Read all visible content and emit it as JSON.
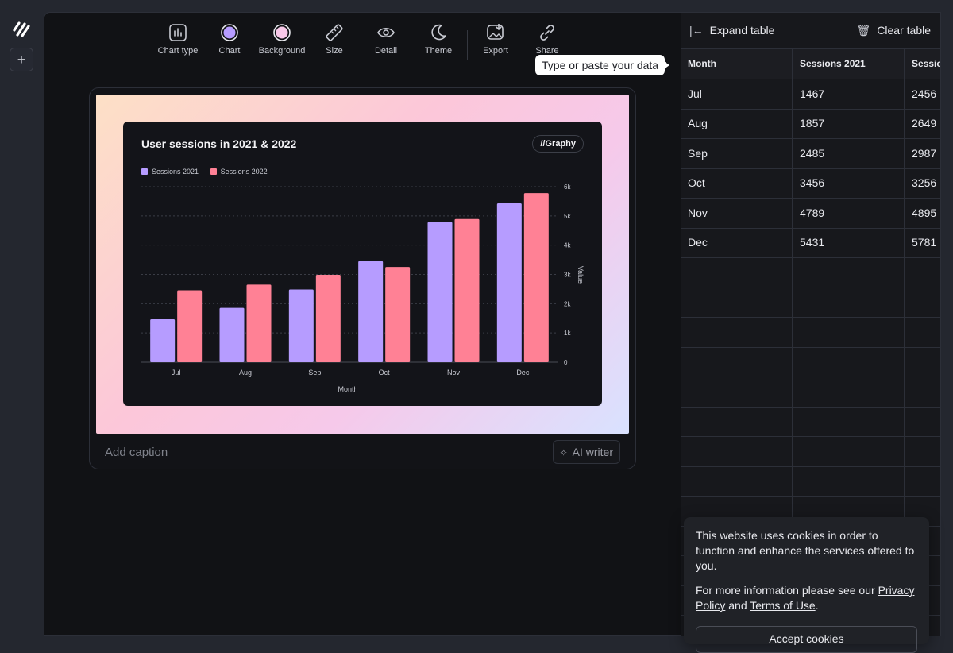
{
  "toolbar": {
    "items": [
      {
        "label": "Chart type",
        "icon": "bar-chart-icon"
      },
      {
        "label": "Chart",
        "icon": "color-swatch-icon"
      },
      {
        "label": "Background",
        "icon": "background-swatch-icon"
      },
      {
        "label": "Size",
        "icon": "ruler-icon"
      },
      {
        "label": "Detail",
        "icon": "eye-icon"
      },
      {
        "label": "Theme",
        "icon": "moon-icon"
      },
      {
        "label": "Export",
        "icon": "image-download-icon"
      },
      {
        "label": "Share",
        "icon": "link-icon"
      }
    ],
    "chart_swatch_color": "#b69cff",
    "background_swatch_color": "#f7c8e8"
  },
  "tooltip": "Type or paste your data",
  "chart": {
    "badge": "Graphy",
    "caption_placeholder": "Add caption",
    "ai_writer_label": "AI writer"
  },
  "chart_data": {
    "type": "bar",
    "title": "User sessions in 2021 & 2022",
    "xlabel": "Month",
    "ylabel": "Value",
    "categories": [
      "Jul",
      "Aug",
      "Sep",
      "Oct",
      "Nov",
      "Dec"
    ],
    "series": [
      {
        "name": "Sessions 2021",
        "color": "#b69cff",
        "values": [
          1467,
          1857,
          2485,
          3456,
          4789,
          5431
        ]
      },
      {
        "name": "Sessions 2022",
        "color": "#ff8195",
        "values": [
          2456,
          2649,
          2987,
          3256,
          4895,
          5781
        ]
      }
    ],
    "ylim": [
      0,
      6000
    ],
    "yticks": [
      "0",
      "1k",
      "2k",
      "3k",
      "4k",
      "5k",
      "6k"
    ],
    "y_axis_side": "right",
    "grid": true,
    "legend": "top-left"
  },
  "table": {
    "expand_label": "Expand table",
    "clear_label": "Clear table",
    "headers": [
      "Month",
      "Sessions 2021",
      "Sessio"
    ],
    "rows": [
      [
        "Jul",
        "1467",
        "2456"
      ],
      [
        "Aug",
        "1857",
        "2649"
      ],
      [
        "Sep",
        "2485",
        "2987"
      ],
      [
        "Oct",
        "3456",
        "3256"
      ],
      [
        "Nov",
        "4789",
        "4895"
      ],
      [
        "Dec",
        "5431",
        "5781"
      ]
    ]
  },
  "cookie": {
    "text1": "This website uses cookies in order to function and enhance the services offered to you.",
    "text2_prefix": "For more information please see our",
    "privacy_link": "Privacy Policy",
    "and": "and",
    "terms_link": "Terms of Use",
    "period": ".",
    "accept_label": "Accept cookies"
  }
}
